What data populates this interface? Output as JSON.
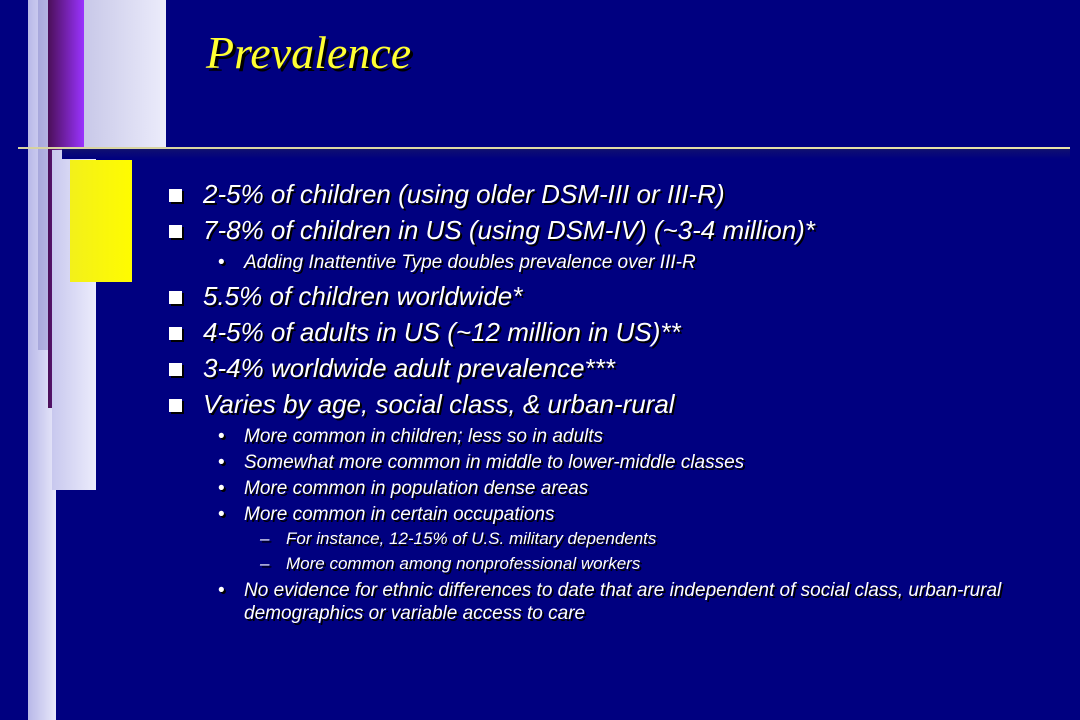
{
  "slide": {
    "title": "Prevalence",
    "items": [
      {
        "level": 1,
        "text": "2-5% of children (using older DSM-III or III-R)"
      },
      {
        "level": 1,
        "text": "7-8% of children in US (using DSM-IV) (~3-4 million)*"
      },
      {
        "level": 2,
        "text": "Adding Inattentive Type doubles prevalence over III-R"
      },
      {
        "level": 1,
        "text": "5.5% of children worldwide*"
      },
      {
        "level": 1,
        "text": "4-5% of adults in US (~12 million in US)**"
      },
      {
        "level": 1,
        "text": "3-4% worldwide adult prevalence***"
      },
      {
        "level": 1,
        "text": "Varies by age, social class, & urban-rural"
      },
      {
        "level": 2,
        "text": "More common in children; less so in adults"
      },
      {
        "level": 2,
        "text": "Somewhat more common in middle to lower-middle classes"
      },
      {
        "level": 2,
        "text": "More common in population dense areas"
      },
      {
        "level": 2,
        "text": "More common in certain occupations"
      },
      {
        "level": 3,
        "text": "For instance, 12-15% of U.S. military dependents"
      },
      {
        "level": 3,
        "text": "More common among nonprofessional workers"
      },
      {
        "level": 2,
        "text": "No evidence for ethnic differences to date that are independent of social class, urban-rural demographics or variable access to care"
      }
    ],
    "bullets": {
      "level1": "square-bullet",
      "level2": "•",
      "level3": "–"
    }
  },
  "colors": {
    "background": "#000080",
    "title": "#FFFF33",
    "text": "#FFFFFF",
    "accent_purple": "#9A33FF",
    "accent_yellow": "#FFFC00",
    "accent_lavender": "#E0E0F8"
  }
}
